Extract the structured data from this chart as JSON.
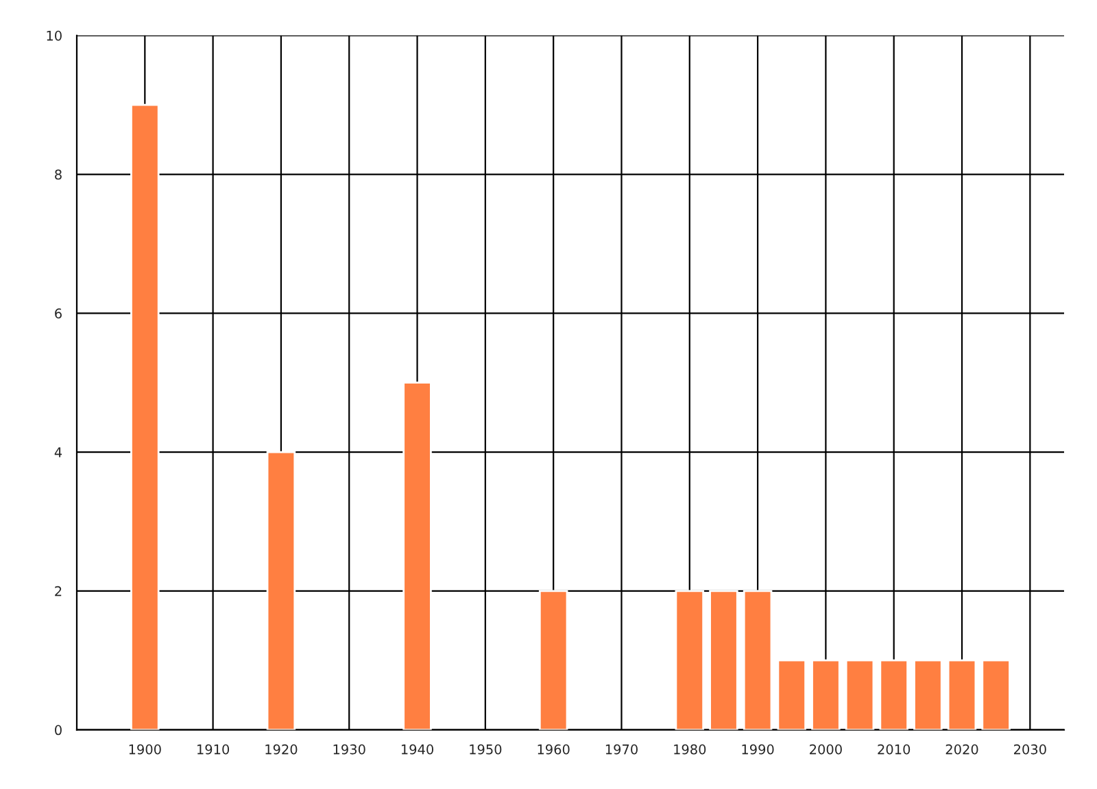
{
  "chart_data": {
    "type": "bar",
    "x": [
      1900,
      1920,
      1940,
      1960,
      1980,
      1985,
      1990,
      1995,
      2000,
      2005,
      2010,
      2015,
      2020,
      2025
    ],
    "values": [
      9,
      4,
      5,
      2,
      2,
      2,
      2,
      1,
      1,
      1,
      1,
      1,
      1,
      1
    ],
    "color": "#ff7f41",
    "xlim": [
      1890,
      2035
    ],
    "xticks": [
      1900,
      1910,
      1920,
      1930,
      1940,
      1950,
      1960,
      1970,
      1980,
      1990,
      2000,
      2010,
      2020,
      2030
    ],
    "ylim": [
      0,
      10
    ],
    "yticks": [
      0,
      2,
      4,
      6,
      8,
      10
    ],
    "grid": true,
    "legend": false
  }
}
